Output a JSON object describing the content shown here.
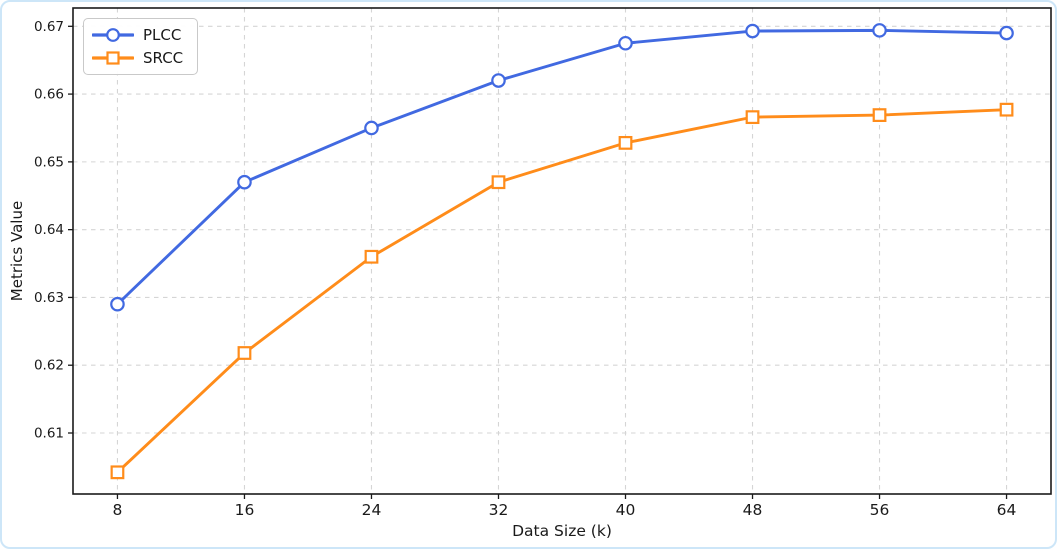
{
  "figure": {
    "background": "#ffffff",
    "border_color": "#cde6f8"
  },
  "colors": {
    "plcc": "#4169e1",
    "srcc": "#ff8c1a",
    "grid": "#d5d5d5",
    "axis": "#1a1a1a",
    "marker_fill": "#ffffff"
  },
  "chart_data": {
    "type": "line",
    "title": "",
    "xlabel": "Data Size (k)",
    "ylabel": "Metrics Value",
    "x": [
      8,
      16,
      24,
      32,
      40,
      48,
      56,
      64
    ],
    "series": [
      {
        "name": "PLCC",
        "marker": "circle",
        "color": "#4169e1",
        "values": [
          0.629,
          0.647,
          0.655,
          0.662,
          0.6675,
          0.6693,
          0.6694,
          0.669
        ]
      },
      {
        "name": "SRCC",
        "marker": "square",
        "color": "#ff8c1a",
        "values": [
          0.6042,
          0.6218,
          0.636,
          0.647,
          0.6528,
          0.6566,
          0.6569,
          0.6577
        ]
      }
    ],
    "xtick_values": [
      8,
      16,
      24,
      32,
      40,
      48,
      56,
      64
    ],
    "xtick_labels": [
      "8",
      "16",
      "24",
      "32",
      "40",
      "48",
      "56",
      "64"
    ],
    "ytick_values": [
      0.61,
      0.62,
      0.63,
      0.64,
      0.65,
      0.66,
      0.67
    ],
    "ytick_labels": [
      "0.61",
      "0.62",
      "0.63",
      "0.64",
      "0.65",
      "0.66",
      "0.67"
    ],
    "xlim": [
      5.2,
      66.8
    ],
    "ylim": [
      0.601,
      0.6727
    ],
    "grid": "dashed-both-axes",
    "legend_position": "upper-left"
  }
}
